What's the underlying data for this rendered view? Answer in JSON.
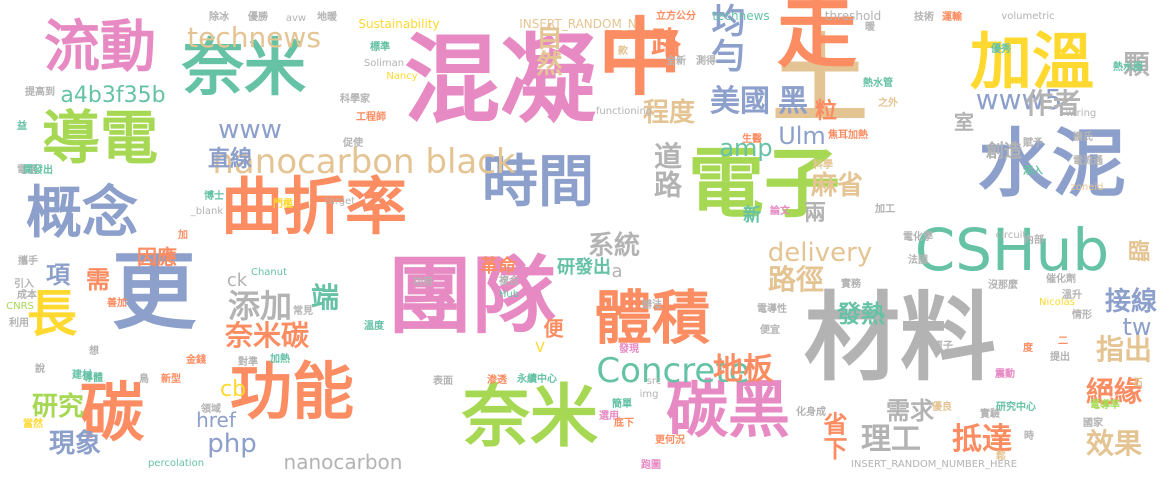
{
  "colors": {
    "pink": "#e78ac3",
    "orange": "#fc8d62",
    "green": "#a6d854",
    "teal": "#66c2a5",
    "blue": "#8da0cb",
    "tan": "#e5c494",
    "gray": "#b3b3b3",
    "yellow": "#ffd92f"
  },
  "words": [
    "混凝",
    "土",
    "中",
    "走",
    "加溫",
    "流動",
    "奈米",
    "導電",
    "電子",
    "水泥",
    "概念",
    "曲折率",
    "時間",
    "CSHub",
    "更",
    "團隊",
    "材料",
    "長",
    "功能",
    "奈米",
    "碳黑",
    "碳",
    "體積",
    "technews",
    "nanocarbon black",
    "www",
    "直線",
    "www5",
    "Ulm",
    "amp",
    "均勻",
    "路",
    "自然",
    "黑",
    "美國",
    "粒",
    "程度",
    "道路",
    "麻省",
    "作者",
    "顆",
    "室",
    "創造",
    "a4b3f35b",
    "Concrete",
    "地板",
    "delivery",
    "系統",
    "添加",
    "奈米碳",
    "端",
    "路徑",
    "接線",
    "tw",
    "指出",
    "絕緣",
    "效果",
    "抵達",
    "理工",
    "省下",
    "需求",
    "nanocarbon",
    "php",
    "href",
    "cb",
    "研究",
    "現象",
    "項",
    "需",
    "因應",
    "研發出",
    "革命",
    "ck",
    "a",
    "兩",
    "新",
    "發熱",
    "臨",
    "便",
    "INSERT_RANDOM_N",
    "Sustainability",
    "threshold",
    "technews",
    "avw",
    "除冰",
    "優勝",
    "地暖",
    "立方公分",
    "技術",
    "運輸",
    "volumetric",
    "暖",
    "標準",
    "Soliman",
    "Nancy",
    "款",
    "全新",
    "測得",
    "熱水管",
    "優秀",
    "熱水器",
    "提高到",
    "科學家",
    "工程師",
    "functioning",
    "wiring",
    "之外",
    "益",
    "電路",
    "開發出",
    "促使",
    "生醫",
    "焦耳加熱",
    "賦予",
    "擴氏",
    "電流通",
    "博士",
    "門檻",
    "科學",
    "添入",
    "zoneid",
    "target",
    "_blank",
    "論文",
    "加工",
    "電化學",
    "內部",
    "circuit",
    "加",
    "攜手",
    "引入",
    "成本",
    "CNRS",
    "利用",
    "善加",
    "Chanut",
    "功用",
    "複合",
    "Hub",
    "沒那麼",
    "實務",
    "催化劑",
    "溫升",
    "法國",
    "常見",
    "溫度",
    "情形",
    "電導性",
    "發現",
    "便宜",
    "Nicolas",
    "金錢",
    "想",
    "對準",
    "加熱",
    "原子",
    "度",
    "提出",
    "說",
    "建材",
    "導體",
    "鳥",
    "新型",
    "渗透",
    "永續中心",
    "表面",
    "震動",
    "石",
    "研究中心",
    "電導率",
    "國家",
    "img",
    "化身成",
    "當然",
    "領域",
    "選用",
    "簡單",
    "底下",
    "優良",
    "時",
    "percolation",
    "INSERT_RANDOM_NUMBER_HERE",
    "更何況",
    "跑圖",
    "鬆",
    "V",
    "src",
    "辦法",
    "二",
    "實驗"
  ]
}
